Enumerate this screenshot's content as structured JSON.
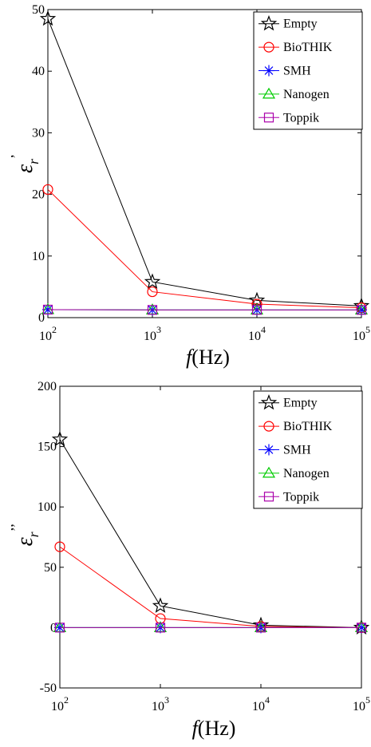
{
  "chart_data": [
    {
      "type": "line",
      "x": [
        100,
        1000,
        10000,
        100000
      ],
      "x_scale": "log",
      "xlim": [
        100,
        100000
      ],
      "ylim": [
        0,
        50
      ],
      "xticks": [
        100,
        1000,
        10000,
        100000
      ],
      "xtick_labels": [
        {
          "base": "10",
          "exp": "2"
        },
        {
          "base": "10",
          "exp": "3"
        },
        {
          "base": "10",
          "exp": "4"
        },
        {
          "base": "10",
          "exp": "5"
        }
      ],
      "yticks": [
        0,
        10,
        20,
        30,
        40,
        50
      ],
      "ytick_labels": [
        "0",
        "10",
        "20",
        "30",
        "40",
        "50"
      ],
      "xlabel": {
        "var": "f",
        "unit": "(Hz)"
      },
      "ylabel": {
        "sym": "ε",
        "sub": "r",
        "sup": "’"
      },
      "grid": false,
      "legend_position": "top-right",
      "series": [
        {
          "name": "Empty",
          "color": "#000000",
          "marker": "star",
          "values": [
            48.5,
            5.8,
            2.8,
            1.9
          ]
        },
        {
          "name": "BioTHIK",
          "color": "#ff0000",
          "marker": "circle",
          "values": [
            20.8,
            4.2,
            2.2,
            1.6
          ]
        },
        {
          "name": "SMH",
          "color": "#0000ff",
          "marker": "asterisk",
          "values": [
            1.3,
            1.25,
            1.25,
            1.25
          ]
        },
        {
          "name": "Nanogen",
          "color": "#00cc00",
          "marker": "triangle",
          "values": [
            1.3,
            1.25,
            1.25,
            1.25
          ]
        },
        {
          "name": "Toppik",
          "color": "#aa00aa",
          "marker": "square",
          "values": [
            1.3,
            1.25,
            1.25,
            1.25
          ]
        }
      ]
    },
    {
      "type": "line",
      "x": [
        100,
        1000,
        10000,
        100000
      ],
      "x_scale": "log",
      "xlim": [
        100,
        100000
      ],
      "ylim": [
        -50,
        200
      ],
      "xticks": [
        100,
        1000,
        10000,
        100000
      ],
      "xtick_labels": [
        {
          "base": "10",
          "exp": "2"
        },
        {
          "base": "10",
          "exp": "3"
        },
        {
          "base": "10",
          "exp": "4"
        },
        {
          "base": "10",
          "exp": "5"
        }
      ],
      "yticks": [
        -50,
        0,
        50,
        100,
        150,
        200
      ],
      "ytick_labels": [
        "-50",
        "0",
        "50",
        "100",
        "150",
        "200"
      ],
      "xlabel": {
        "var": "f",
        "unit": "(Hz)"
      },
      "ylabel": {
        "sym": "ε",
        "sub": "r",
        "sup": "’’"
      },
      "grid": false,
      "legend_position": "top-right",
      "series": [
        {
          "name": "Empty",
          "color": "#000000",
          "marker": "star",
          "values": [
            156,
            18,
            2,
            0
          ]
        },
        {
          "name": "BioTHIK",
          "color": "#ff0000",
          "marker": "circle",
          "values": [
            67,
            7.5,
            1,
            0
          ]
        },
        {
          "name": "SMH",
          "color": "#0000ff",
          "marker": "asterisk",
          "values": [
            0,
            0,
            0,
            0
          ]
        },
        {
          "name": "Nanogen",
          "color": "#00cc00",
          "marker": "triangle",
          "values": [
            0,
            0,
            0,
            0
          ]
        },
        {
          "name": "Toppik",
          "color": "#aa00aa",
          "marker": "square",
          "values": [
            0,
            0,
            0,
            0
          ]
        }
      ]
    }
  ]
}
